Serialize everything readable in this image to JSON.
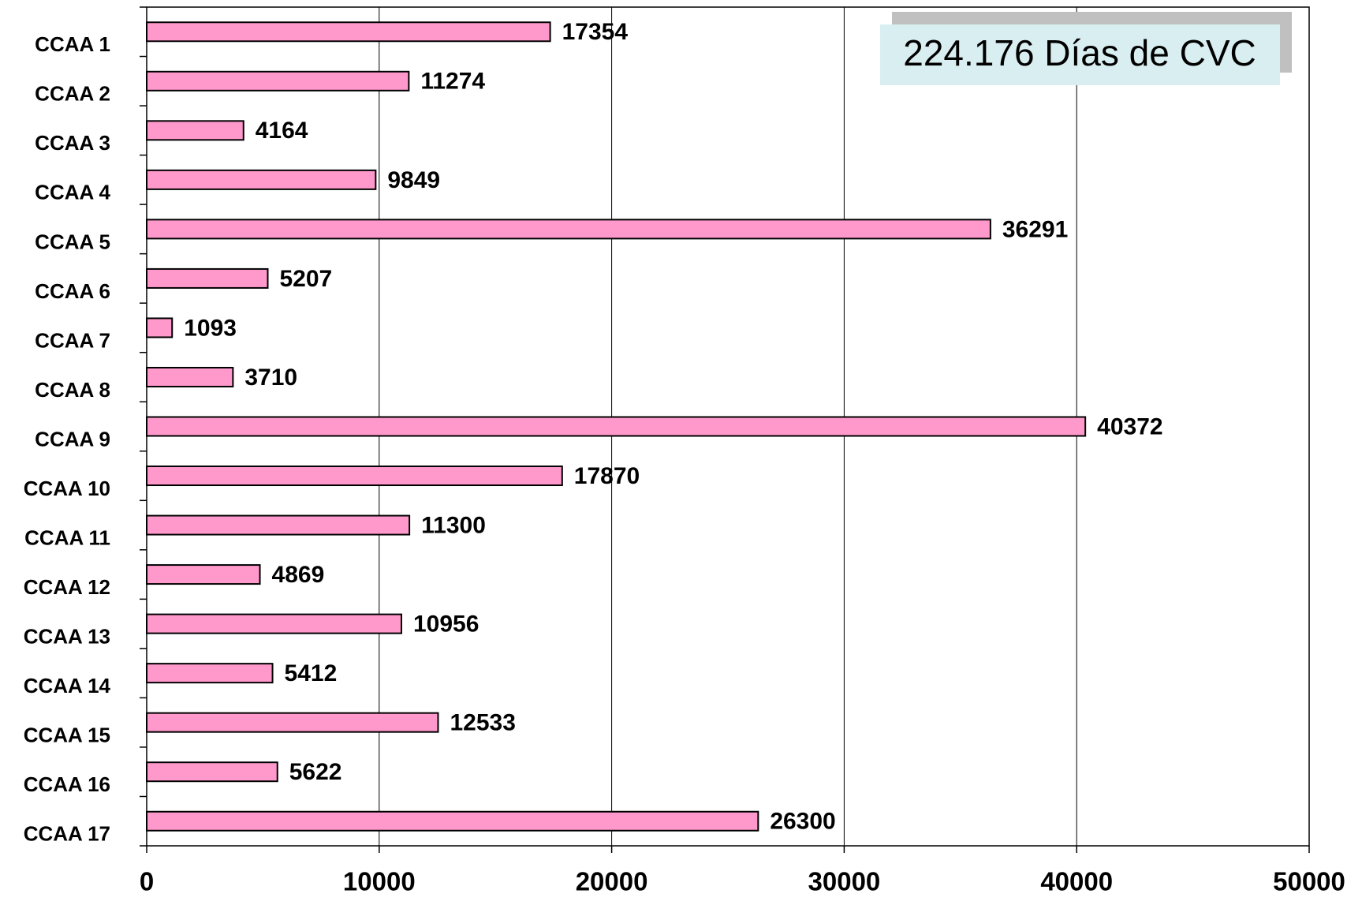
{
  "chart_data": {
    "type": "bar",
    "orientation": "horizontal",
    "categories": [
      "CCAA 1",
      "CCAA 2",
      "CCAA 3",
      "CCAA 4",
      "CCAA 5",
      "CCAA 6",
      "CCAA 7",
      "CCAA 8",
      "CCAA 9",
      "CCAA 10",
      "CCAA 11",
      "CCAA 12",
      "CCAA 13",
      "CCAA 14",
      "CCAA 15",
      "CCAA 16",
      "CCAA 17"
    ],
    "values": [
      17354,
      11274,
      4164,
      9849,
      36291,
      5207,
      1093,
      3710,
      40372,
      17870,
      11300,
      4869,
      10956,
      5412,
      12533,
      5622,
      26300
    ],
    "color": "#ff99cc",
    "xlim": [
      0,
      50000
    ],
    "xticks": [
      0,
      10000,
      20000,
      30000,
      40000,
      50000
    ],
    "grid": true,
    "annotation": "224.176 Días de CVC"
  }
}
